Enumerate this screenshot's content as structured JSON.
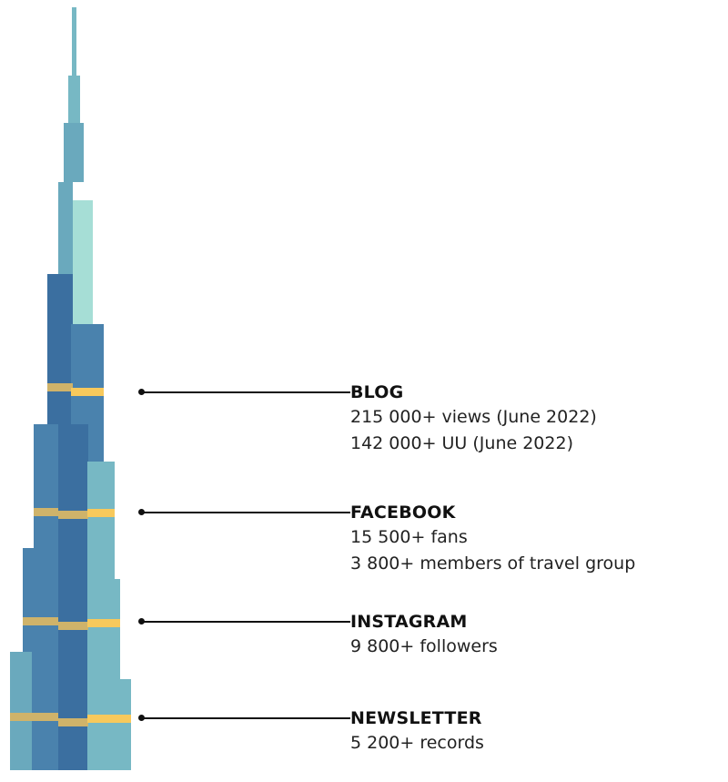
{
  "colors": {
    "teal_light": "#a6ded6",
    "teal": "#77b8c4",
    "teal_mid": "#6aa9bd",
    "blue": "#4a82ad",
    "blue_dark": "#3b6fa0",
    "gold": "#f7c95c",
    "gold_dark": "#cfb36a"
  },
  "sections": [
    {
      "title": "BLOG",
      "lines": [
        "215 000+ views (June 2022)",
        "142 000+ UU (June 2022)"
      ]
    },
    {
      "title": "FACEBOOK",
      "lines": [
        "15 500+ fans",
        "3 800+ members of travel group"
      ]
    },
    {
      "title": "INSTAGRAM",
      "lines": [
        "9 800+ followers"
      ]
    },
    {
      "title": "NEWSLETTER",
      "lines": [
        "5 200+ records"
      ]
    }
  ]
}
